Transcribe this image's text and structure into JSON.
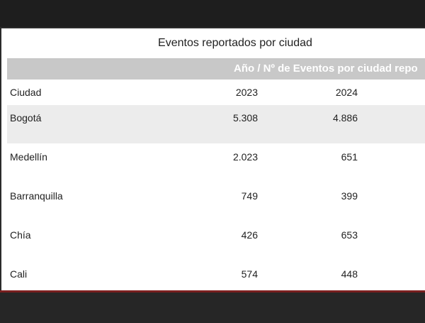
{
  "table": {
    "title": "Eventos reportados por ciudad",
    "group_header": "Año / Nº de Eventos por ciudad repo",
    "columns": [
      "Ciudad",
      "2023",
      "2024"
    ],
    "rows": [
      [
        "Bogotá",
        "5.308",
        "4.886"
      ],
      [
        "Medellín",
        "2.023",
        "651"
      ],
      [
        "Barranquilla",
        "749",
        "399"
      ],
      [
        "Chía",
        "426",
        "653"
      ],
      [
        "Cali",
        "574",
        "448"
      ]
    ]
  }
}
